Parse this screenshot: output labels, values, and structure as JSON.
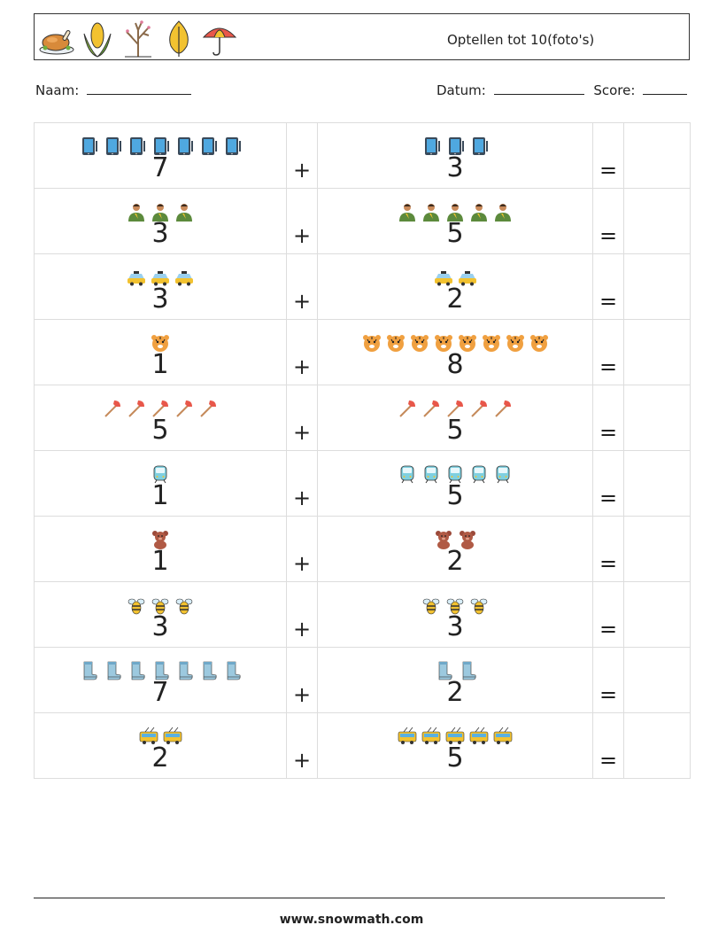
{
  "header": {
    "title": "Optellen tot 10(foto's)",
    "icons": [
      "roast-chicken-icon",
      "corn-icon",
      "bare-tree-icon",
      "yellow-leaf-icon",
      "umbrella-icon"
    ]
  },
  "info": {
    "name_label": "Naam:",
    "date_label": "Datum:",
    "score_label": "Score:"
  },
  "operators": {
    "plus": "+",
    "equals": "="
  },
  "problems": [
    {
      "a": {
        "count": "7",
        "icon": "tablet-icon"
      },
      "b": {
        "count": "3",
        "icon": "tablet-icon"
      }
    },
    {
      "a": {
        "count": "3",
        "icon": "person-icon"
      },
      "b": {
        "count": "5",
        "icon": "person-icon"
      }
    },
    {
      "a": {
        "count": "3",
        "icon": "taxi-icon"
      },
      "b": {
        "count": "2",
        "icon": "taxi-icon"
      }
    },
    {
      "a": {
        "count": "1",
        "icon": "tiger-face-icon"
      },
      "b": {
        "count": "8",
        "icon": "tiger-face-icon"
      }
    },
    {
      "a": {
        "count": "5",
        "icon": "axe-icon"
      },
      "b": {
        "count": "5",
        "icon": "axe-icon"
      }
    },
    {
      "a": {
        "count": "1",
        "icon": "train-icon"
      },
      "b": {
        "count": "5",
        "icon": "train-icon"
      }
    },
    {
      "a": {
        "count": "1",
        "icon": "teddy-bear-icon"
      },
      "b": {
        "count": "2",
        "icon": "teddy-bear-icon"
      }
    },
    {
      "a": {
        "count": "3",
        "icon": "bee-icon"
      },
      "b": {
        "count": "3",
        "icon": "bee-icon"
      }
    },
    {
      "a": {
        "count": "7",
        "icon": "boot-icon"
      },
      "b": {
        "count": "2",
        "icon": "boot-icon"
      }
    },
    {
      "a": {
        "count": "2",
        "icon": "trolleybus-icon"
      },
      "b": {
        "count": "5",
        "icon": "trolleybus-icon"
      }
    }
  ],
  "footer": {
    "url": "www.snowmath.com"
  }
}
